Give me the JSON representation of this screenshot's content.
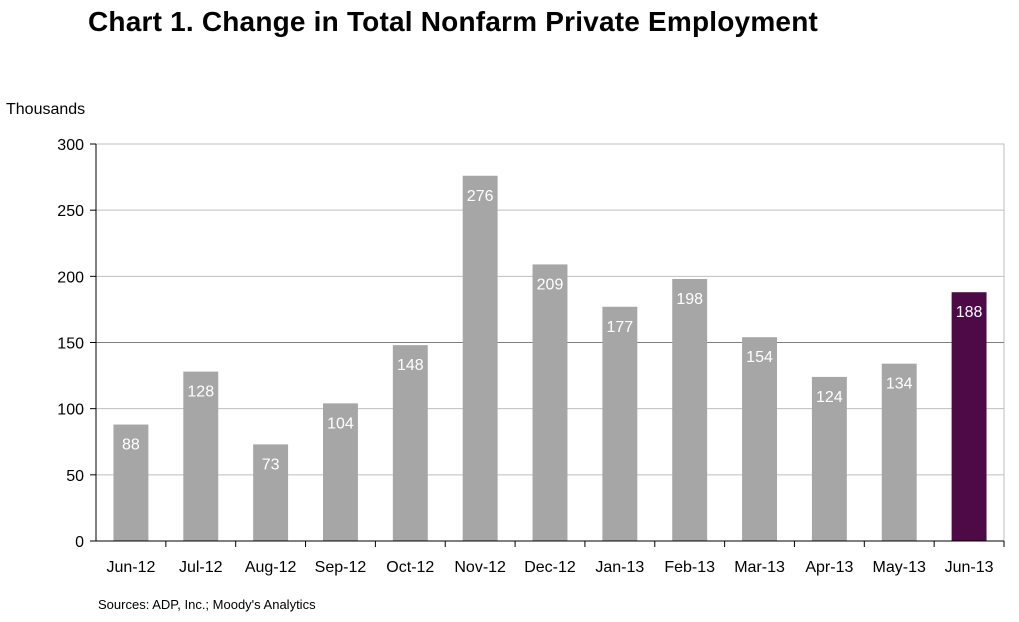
{
  "chart_data": {
    "type": "bar",
    "title": "Chart 1. Change in Total Nonfarm Private Employment",
    "ylabel": "Thousands",
    "xlabel": "",
    "categories": [
      "Jun-12",
      "Jul-12",
      "Aug-12",
      "Sep-12",
      "Oct-12",
      "Nov-12",
      "Dec-12",
      "Jan-13",
      "Feb-13",
      "Mar-13",
      "Apr-13",
      "May-13",
      "Jun-13"
    ],
    "values": [
      88,
      128,
      73,
      104,
      148,
      276,
      209,
      177,
      198,
      154,
      124,
      134,
      188
    ],
    "ylim": [
      0,
      300
    ],
    "yticks": [
      0,
      50,
      100,
      150,
      200,
      250,
      300
    ],
    "grid": true,
    "legend": "none",
    "colors": {
      "default_bar": "#a6a6a6",
      "highlight_bar": "#4d0a47",
      "data_label": "#ffffff",
      "gridline": "#bfbfbf"
    },
    "highlight_index": 12,
    "source": "Sources: ADP, Inc.; Moody's Analytics"
  }
}
